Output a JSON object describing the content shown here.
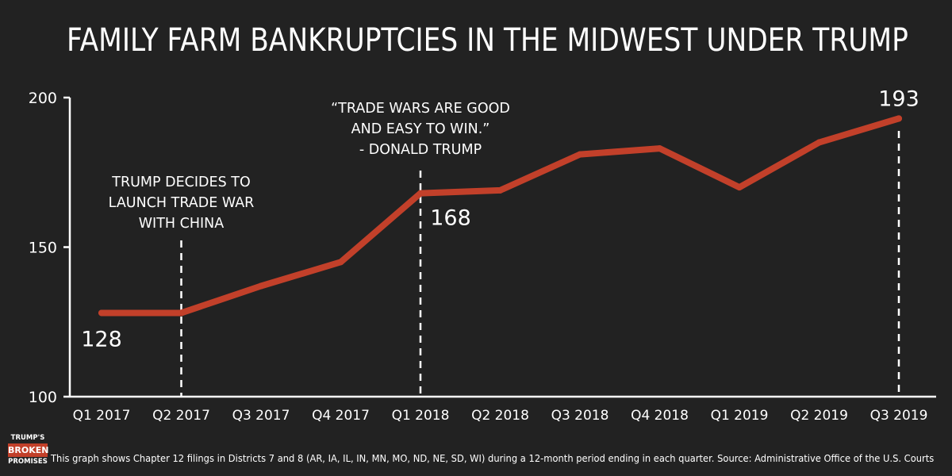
{
  "title": "FAMILY FARM BANKRUPTCIES IN THE MIDWEST UNDER TRUMP",
  "colors": {
    "background": "#222222",
    "line": "#c2402a",
    "text": "#ffffff",
    "axis": "#ffffff"
  },
  "chart_data": {
    "type": "line",
    "title": "FAMILY FARM BANKRUPTCIES IN THE MIDWEST UNDER TRUMP",
    "xlabel": "",
    "ylabel": "",
    "categories": [
      "Q1 2017",
      "Q2 2017",
      "Q3 2017",
      "Q4 2017",
      "Q1 2018",
      "Q2 2018",
      "Q3 2018",
      "Q4 2018",
      "Q1 2019",
      "Q2 2019",
      "Q3 2019"
    ],
    "series": [
      {
        "values": [
          128,
          128,
          137,
          145,
          168,
          169,
          181,
          183,
          170,
          185,
          193
        ]
      }
    ],
    "ylim": [
      100,
      200
    ],
    "yticks": [
      "100",
      "150",
      "200"
    ],
    "grid": false,
    "legend": "none",
    "data_labels": [
      {
        "index": 0,
        "text": "128"
      },
      {
        "index": 4,
        "text": "168"
      },
      {
        "index": 10,
        "text": "193"
      }
    ],
    "annotations": [
      {
        "index": 1,
        "lines": [
          "TRUMP DECIDES TO",
          "LAUNCH TRADE WAR",
          "WITH CHINA"
        ]
      },
      {
        "index": 4,
        "lines": [
          "“TRADE WARS ARE GOOD",
          "AND EASY TO WIN.”",
          "- DONALD TRUMP"
        ]
      }
    ]
  },
  "footer": {
    "note": "This graph shows Chapter 12 filings in Districts 7 and 8 (AR, IA, IL, IN, MN, MO, ND, NE, SD, WI) during a 12-month period ending in each quarter.  Source: Administrative Office of the U.S. Courts"
  },
  "logo": {
    "line1": "TRUMP'S",
    "line2": "BROKEN",
    "line3": "PROMISES"
  }
}
